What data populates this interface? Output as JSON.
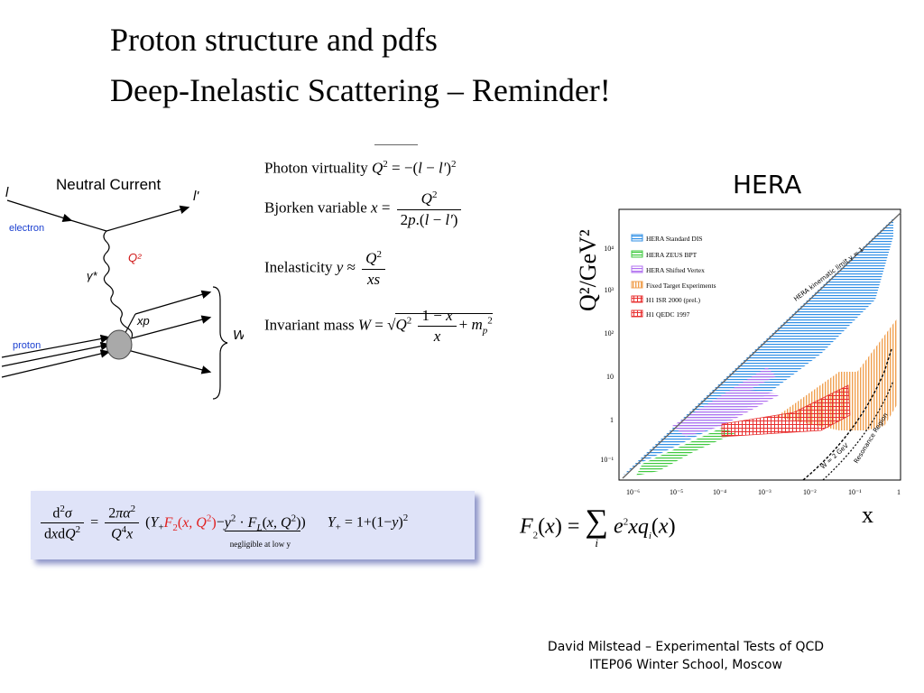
{
  "title": {
    "line1": "Proton structure and pdfs",
    "line2": "Deep-Inelastic Scattering – Reminder!"
  },
  "feynman": {
    "heading": "Neutral Current",
    "incoming_lepton": "l",
    "outgoing_lepton": "l'",
    "electron_label": "electron",
    "proton_label": "proton",
    "boson_label": "γ*",
    "q2_label": "Q²",
    "xp_label": "xp",
    "w_label": "W"
  },
  "formulas": {
    "photon_virtuality": "Photon virtuality",
    "bjorken": "Bjorken variable",
    "inelasticity": "Inelasticity",
    "invariant_mass": "Invariant  mass"
  },
  "hera": {
    "label": "HERA",
    "y_axis": "Q²/GeV²",
    "x_axis": "x",
    "kinematic_limit": "HERA kinematic limit  y = 1",
    "w_line": "W = 2 GeV",
    "resonance": "Resonance  Region",
    "legend": [
      {
        "label": "HERA Standard DIS",
        "color": "#2f8fe6"
      },
      {
        "label": "HERA ZEUS BPT",
        "color": "#3ec93e"
      },
      {
        "label": "HERA Shifted Vertex",
        "color": "#b070f0"
      },
      {
        "label": "Fixed Target Experiments",
        "color": "#f0a050"
      },
      {
        "label": "H1 ISR 2000 (prel.)",
        "color": "#e83030"
      },
      {
        "label": "H1 QEDC 1997",
        "color": "#e83030"
      }
    ],
    "x_ticks": [
      "10⁻⁶",
      "10⁻⁵",
      "10⁻⁴",
      "10⁻³",
      "10⁻²",
      "10⁻¹",
      "1"
    ],
    "y_ticks": [
      "10⁻¹",
      "1",
      "10",
      "10²",
      "10³",
      "10⁴"
    ]
  },
  "cross_section": {
    "negligible": "negligible at low y"
  },
  "footer": {
    "line1": "David Milstead – Experimental Tests of QCD",
    "line2": "ITEP06 Winter School, Moscow"
  }
}
